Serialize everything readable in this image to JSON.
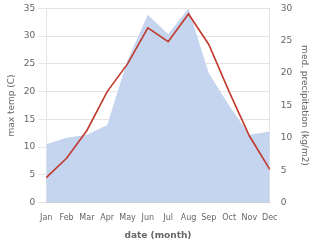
{
  "chart_data": {
    "type": "line",
    "categories": [
      "Jan",
      "Feb",
      "Mar",
      "Apr",
      "May",
      "Jun",
      "Jul",
      "Aug",
      "Sep",
      "Oct",
      "Nov",
      "Dec"
    ],
    "series": [
      {
        "type": "line",
        "color": "#c0392b",
        "values": [
          4.5,
          8.0,
          13.0,
          20.0,
          25.0,
          31.5,
          29.0,
          34.0,
          28.5,
          20.0,
          12.0,
          6.0
        ]
      },
      {
        "type": "area",
        "color": "#c5d4ef",
        "axis": "y2",
        "values": [
          9.0,
          10.0,
          10.5,
          12.0,
          22.0,
          29.0,
          26.0,
          30.0,
          20.0,
          15.0,
          10.5,
          11.0
        ]
      }
    ],
    "x_label": "date (month)",
    "y_label": "max temp (C)",
    "y2_label": "med. precipitation (kg/m2)",
    "ylim": [
      0,
      35
    ],
    "yticks": [
      0,
      5,
      10,
      15,
      20,
      25,
      30,
      35
    ],
    "y2lim": [
      0,
      30
    ],
    "y2ticks": [
      0,
      5,
      10,
      15,
      20,
      25,
      30
    ],
    "grid": true
  }
}
